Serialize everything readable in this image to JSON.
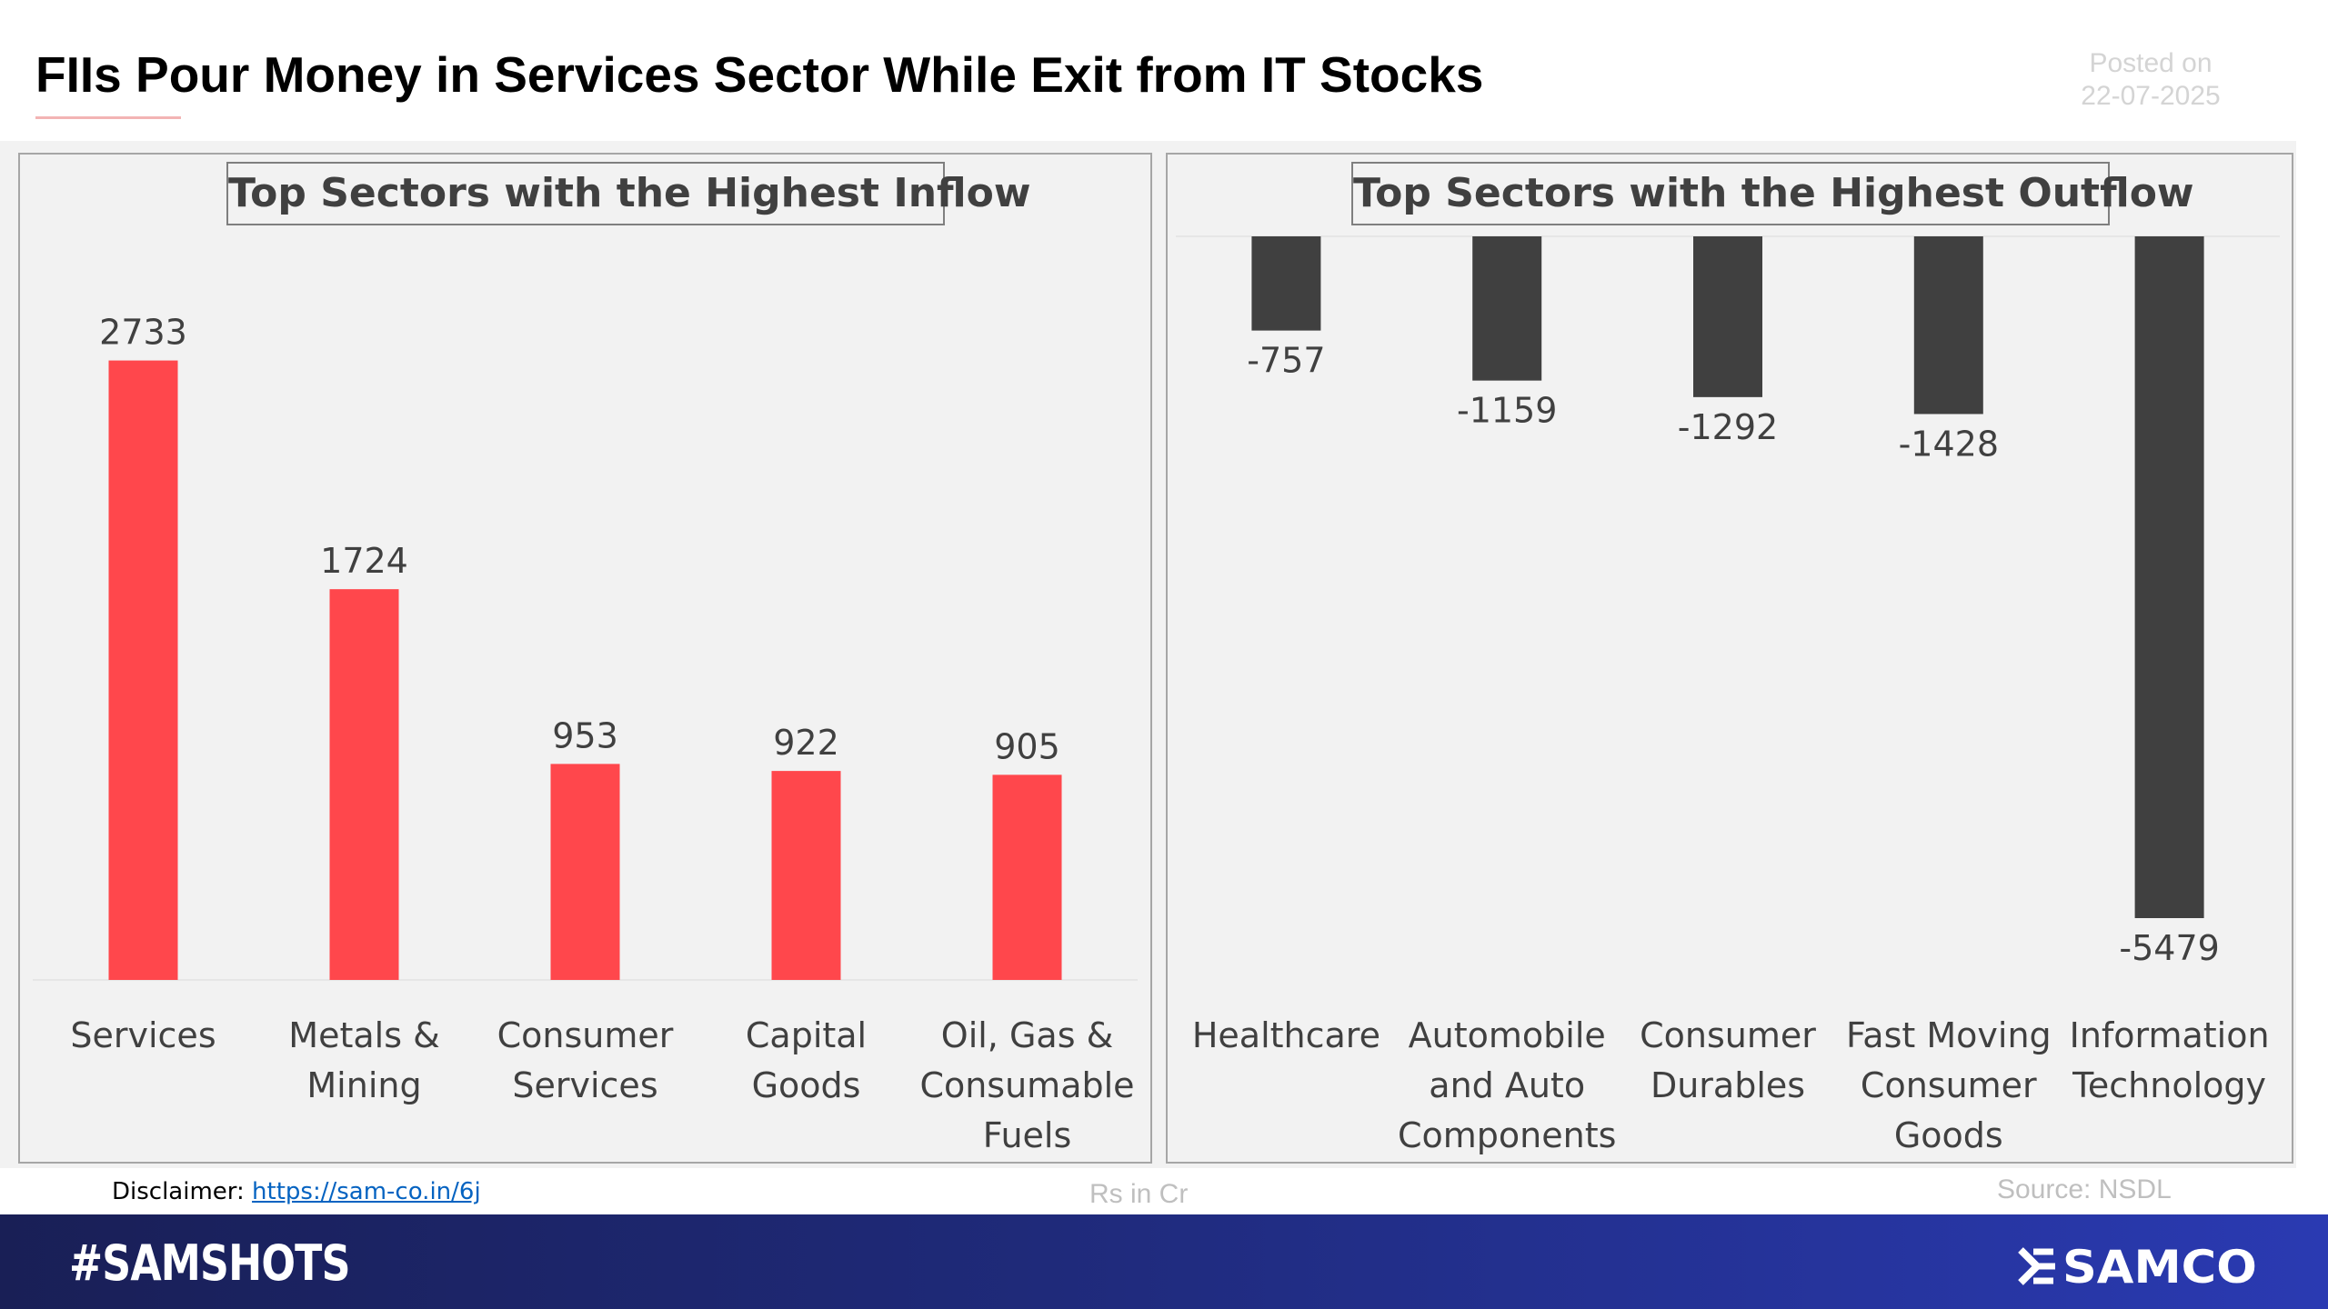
{
  "header": {
    "title": "FIIs Pour Money in Services Sector While Exit from IT Stocks",
    "posted_label": "Posted on",
    "posted_date": "22-07-2025"
  },
  "chart_data": [
    {
      "type": "bar",
      "title": "Top Sectors with the Highest Inflow",
      "categories": [
        [
          "Services"
        ],
        [
          "Metals &",
          "Mining"
        ],
        [
          "Consumer",
          "Services"
        ],
        [
          "Capital",
          "Goods"
        ],
        [
          "Oil, Gas &",
          "Consumable",
          "Fuels"
        ]
      ],
      "values": [
        2733,
        1724,
        953,
        922,
        905
      ],
      "value_labels": [
        "2733",
        "1724",
        "953",
        "922",
        "905"
      ],
      "color": "#ff474c",
      "ylim": [
        0,
        3000
      ],
      "grid": false
    },
    {
      "type": "bar",
      "title": "Top Sectors with the Highest Outflow",
      "categories": [
        [
          "Healthcare"
        ],
        [
          "Automobile",
          "and Auto",
          "Components"
        ],
        [
          "Consumer",
          "Durables"
        ],
        [
          "Fast Moving",
          "Consumer",
          "Goods"
        ],
        [
          "Information",
          "Technology"
        ]
      ],
      "values": [
        -757,
        -1159,
        -1292,
        -1428,
        -5479
      ],
      "value_labels": [
        "-757",
        "-1159",
        "-1292",
        "-1428",
        "-5479"
      ],
      "color": "#404040",
      "ylim": [
        -5479,
        0
      ],
      "grid": false
    }
  ],
  "footer": {
    "disclaimer_label": "Disclaimer:",
    "disclaimer_link": "https://sam-co.in/6j",
    "units": "Rs in Cr",
    "source": "Source: NSDL",
    "hashtag": "#SAMSHOTS",
    "brand": "SAMCO"
  },
  "colors": {
    "inflow_bar": "#ff474c",
    "outflow_bar": "#404040",
    "panel_bg": "#f2f2f2",
    "footer_bar": "#1f2a7a"
  }
}
